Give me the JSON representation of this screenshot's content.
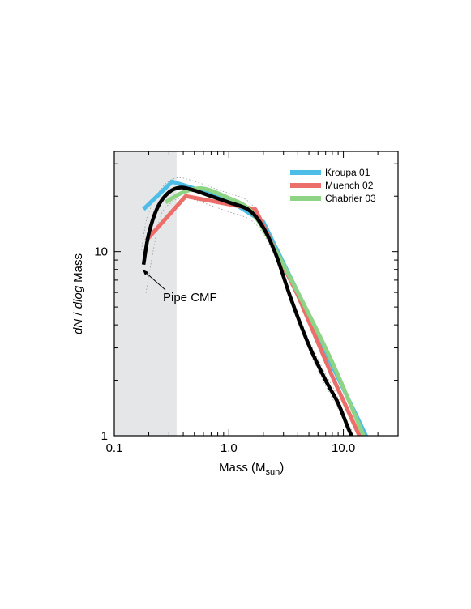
{
  "chart_data": {
    "type": "line",
    "xlabel": "Mass (M",
    "xlabel_sub": "sun",
    "xlabel_close": ")",
    "ylabel_italic_1": "dN",
    "ylabel_plain_1": " / ",
    "ylabel_italic_2": "dlog",
    "ylabel_plain_2": " Mass",
    "x_scale": "log",
    "y_scale": "log",
    "xlim": [
      0.1,
      30
    ],
    "ylim": [
      1,
      35
    ],
    "x_ticks": [
      {
        "value": 0.1,
        "label": "0.1"
      },
      {
        "value": 1.0,
        "label": "1.0"
      },
      {
        "value": 10.0,
        "label": "10.0"
      }
    ],
    "y_ticks": [
      {
        "value": 1,
        "label": "1"
      },
      {
        "value": 10,
        "label": "10"
      }
    ],
    "shaded_region": {
      "x": [
        0.1,
        0.35
      ],
      "color": "#e5e6e8"
    },
    "legend_position": "top-right",
    "series": [
      {
        "name": "Kroupa 01",
        "color": "#4bbde6",
        "points": [
          [
            0.18,
            17.0
          ],
          [
            0.32,
            24.0
          ],
          [
            0.5,
            22.0
          ],
          [
            1.0,
            19.0
          ],
          [
            2.0,
            14.5
          ],
          [
            4.0,
            6.0
          ],
          [
            8.0,
            2.4
          ],
          [
            16.0,
            0.98
          ]
        ]
      },
      {
        "name": "Muench 02",
        "color": "#ec6e6a",
        "points": [
          [
            0.19,
            11.5
          ],
          [
            0.42,
            20.0
          ],
          [
            1.7,
            17.0
          ],
          [
            4.0,
            5.8
          ],
          [
            8.0,
            2.1
          ],
          [
            14.0,
            0.98
          ]
        ]
      },
      {
        "name": "Chabrier 03",
        "color": "#8ed386",
        "points": [
          [
            0.28,
            18.5
          ],
          [
            0.4,
            21.0
          ],
          [
            0.6,
            22.0
          ],
          [
            1.0,
            19.5
          ],
          [
            1.5,
            17.0
          ],
          [
            2.2,
            12.0
          ],
          [
            4.0,
            6.0
          ],
          [
            8.0,
            2.5
          ],
          [
            15.0,
            1.0
          ]
        ]
      },
      {
        "name": "Pipe CMF",
        "color": "#000000",
        "points": [
          [
            0.18,
            8.5
          ],
          [
            0.2,
            12.5
          ],
          [
            0.24,
            17.5
          ],
          [
            0.3,
            21.0
          ],
          [
            0.38,
            22.3
          ],
          [
            0.5,
            21.5
          ],
          [
            0.7,
            20.0
          ],
          [
            1.0,
            18.5
          ],
          [
            1.5,
            16.8
          ],
          [
            2.0,
            13.5
          ],
          [
            2.6,
            9.5
          ],
          [
            3.5,
            5.5
          ],
          [
            5.0,
            3.1
          ],
          [
            7.0,
            2.0
          ],
          [
            9.0,
            1.5
          ],
          [
            11.0,
            1.1
          ],
          [
            12.5,
            0.93
          ]
        ]
      }
    ],
    "annotations": [
      {
        "text": "Pipe CMF",
        "target": [
          0.18,
          8.5
        ],
        "text_at": [
          0.38,
          5.7
        ]
      }
    ]
  }
}
